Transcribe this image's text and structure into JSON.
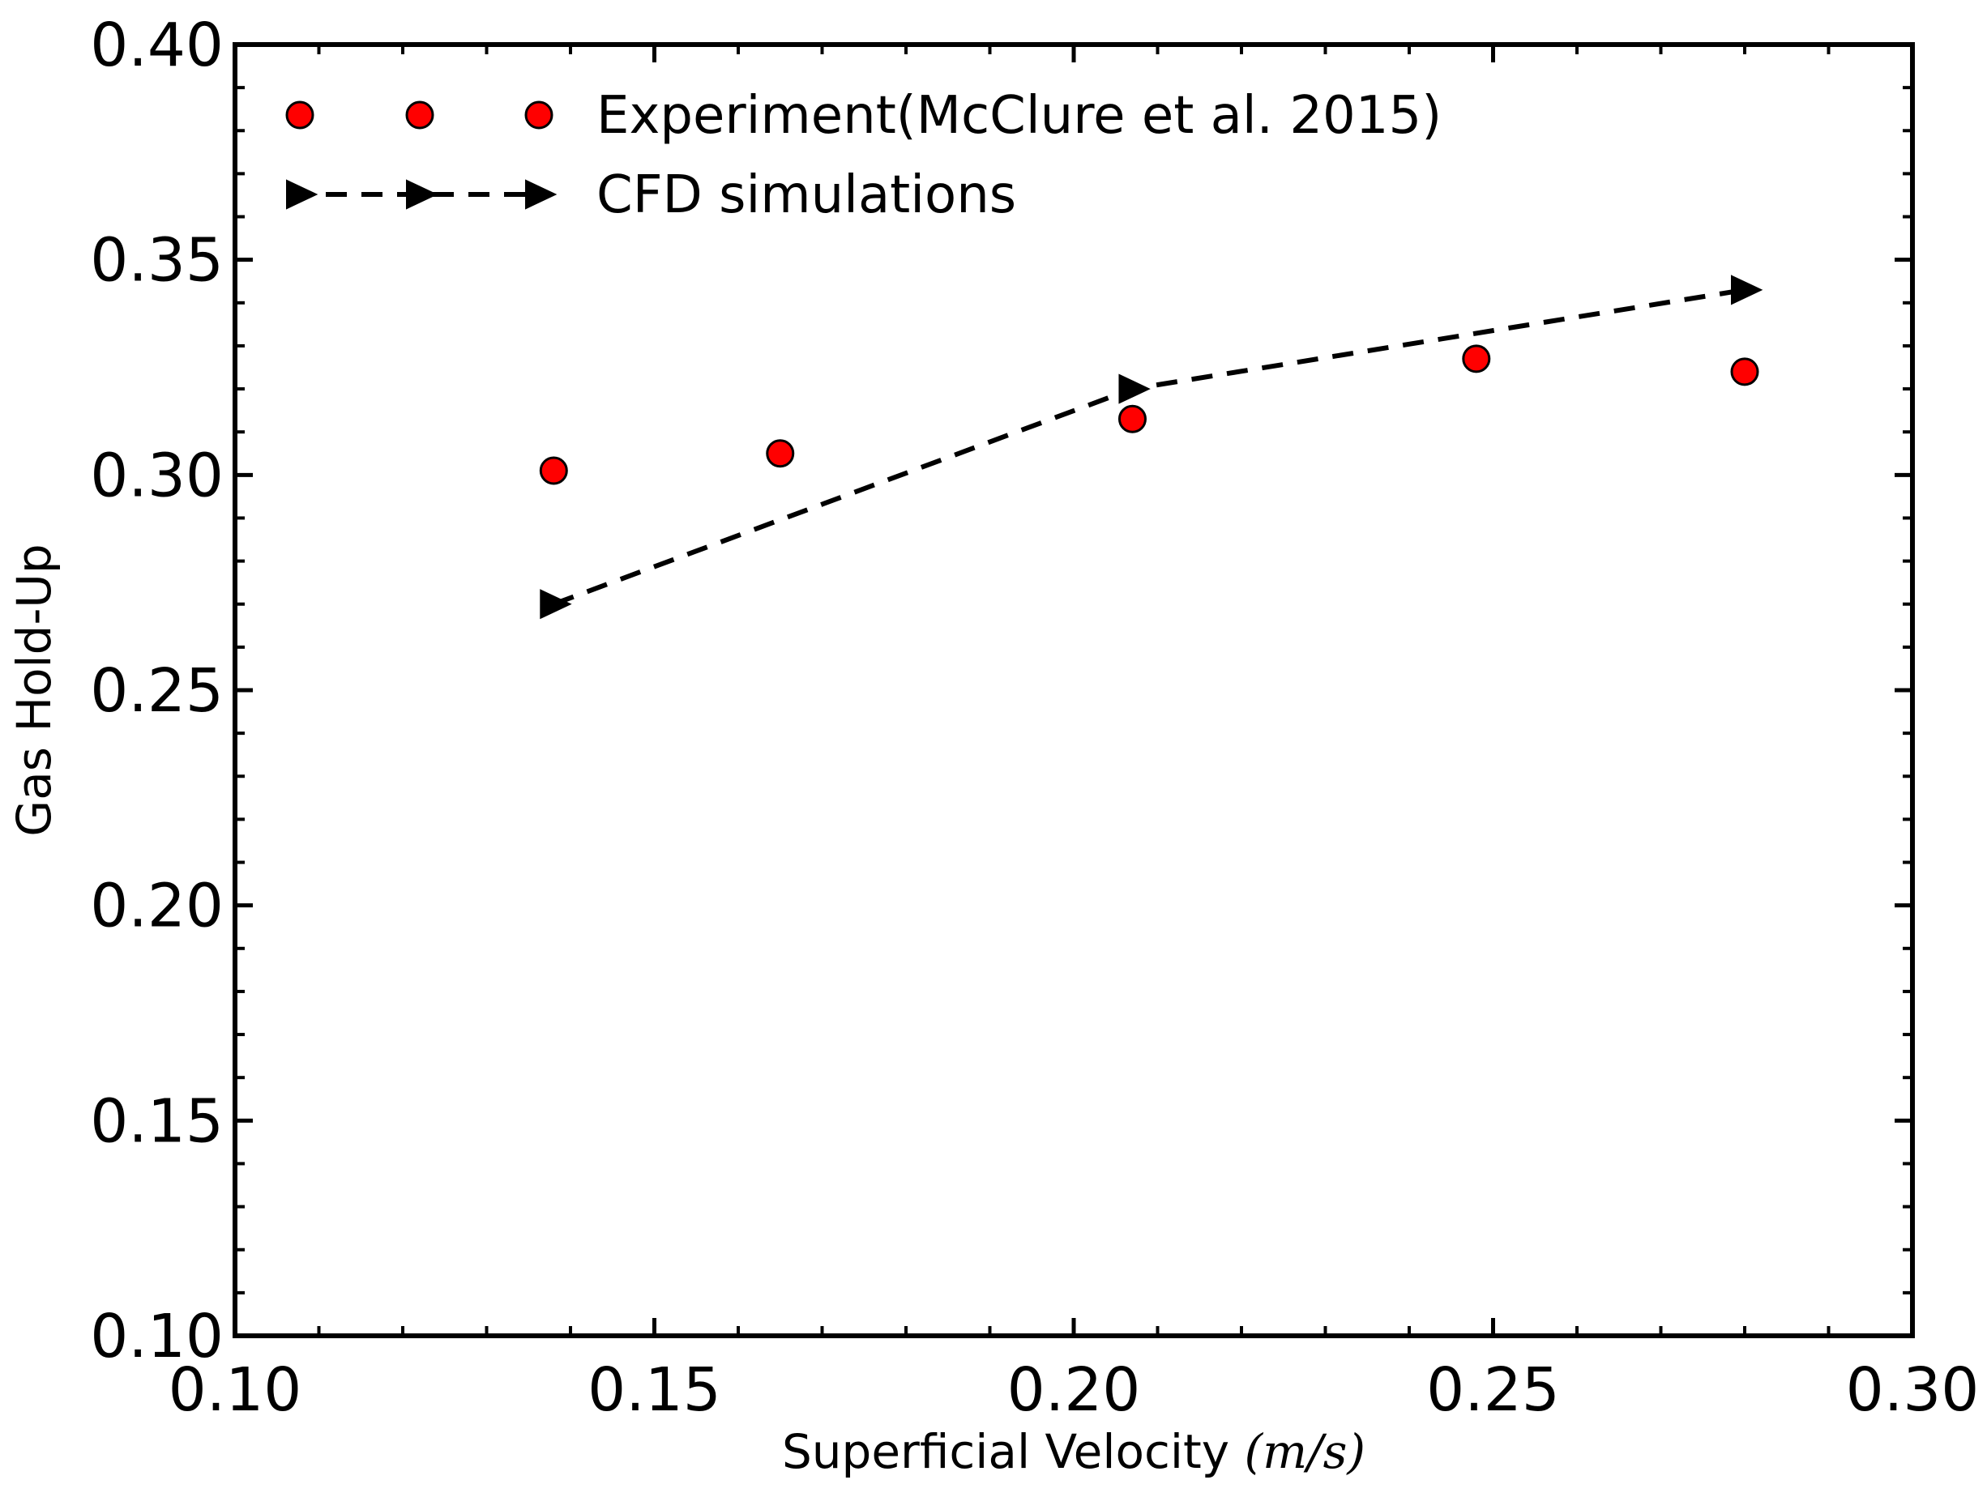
{
  "chart_data": {
    "type": "scatter",
    "title": "",
    "xlabel": "Superficial Velocity",
    "xlabel_unit": "(m/s)",
    "ylabel": "Gas Hold-Up",
    "xlim": [
      0.1,
      0.3
    ],
    "ylim": [
      0.1,
      0.4
    ],
    "x_ticks": [
      "0.10",
      "0.15",
      "0.20",
      "0.25",
      "0.30"
    ],
    "y_ticks": [
      "0.10",
      "0.15",
      "0.20",
      "0.25",
      "0.30",
      "0.35",
      "0.40"
    ],
    "grid": false,
    "legend_position": "top-left",
    "series": [
      {
        "name": "Experiment(McClure et al. 2015)",
        "marker": "circle",
        "line": "none",
        "color": "#ff0000",
        "x": [
          0.138,
          0.165,
          0.207,
          0.248,
          0.28
        ],
        "y": [
          0.301,
          0.305,
          0.313,
          0.327,
          0.324
        ]
      },
      {
        "name": "CFD simulations",
        "marker": "triangle-right",
        "line": "dashed",
        "color": "#000000",
        "x": [
          0.138,
          0.207,
          0.28
        ],
        "y": [
          0.27,
          0.32,
          0.343
        ]
      }
    ]
  }
}
